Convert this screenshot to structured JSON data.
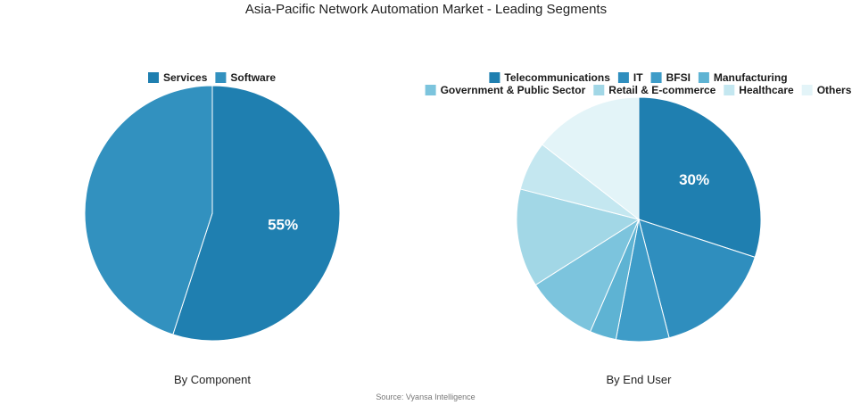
{
  "title": "Asia-Pacific Network Automation Market - Leading Segments",
  "source": "Source: Vyansa Intelligence",
  "chart_data": [
    {
      "type": "pie",
      "title": "By Component",
      "legend_position": "top",
      "slices": [
        {
          "label": "Services",
          "value": 55,
          "color": "#1f7fb0",
          "show_label": "55%"
        },
        {
          "label": "Software",
          "value": 45,
          "color": "#3291bf",
          "show_label": ""
        }
      ]
    },
    {
      "type": "pie",
      "title": "By End User",
      "legend_position": "top",
      "slices": [
        {
          "label": "Telecommunications",
          "value": 30,
          "color": "#1f7fb0",
          "show_label": "30%"
        },
        {
          "label": "IT",
          "value": 16,
          "color": "#2f8ebe",
          "show_label": ""
        },
        {
          "label": "BFSI",
          "value": 7,
          "color": "#3e9cc8",
          "show_label": ""
        },
        {
          "label": "Manufacturing",
          "value": 3.5,
          "color": "#5eb3d3",
          "show_label": ""
        },
        {
          "label": "Government & Public Sector",
          "value": 9.5,
          "color": "#7cc4dd",
          "show_label": ""
        },
        {
          "label": "Retail & E-commerce",
          "value": 13,
          "color": "#a2d7e6",
          "show_label": ""
        },
        {
          "label": "Healthcare",
          "value": 6.5,
          "color": "#c4e7f0",
          "show_label": ""
        },
        {
          "label": "Others",
          "value": 14.5,
          "color": "#e3f4f8",
          "show_label": ""
        }
      ]
    }
  ]
}
